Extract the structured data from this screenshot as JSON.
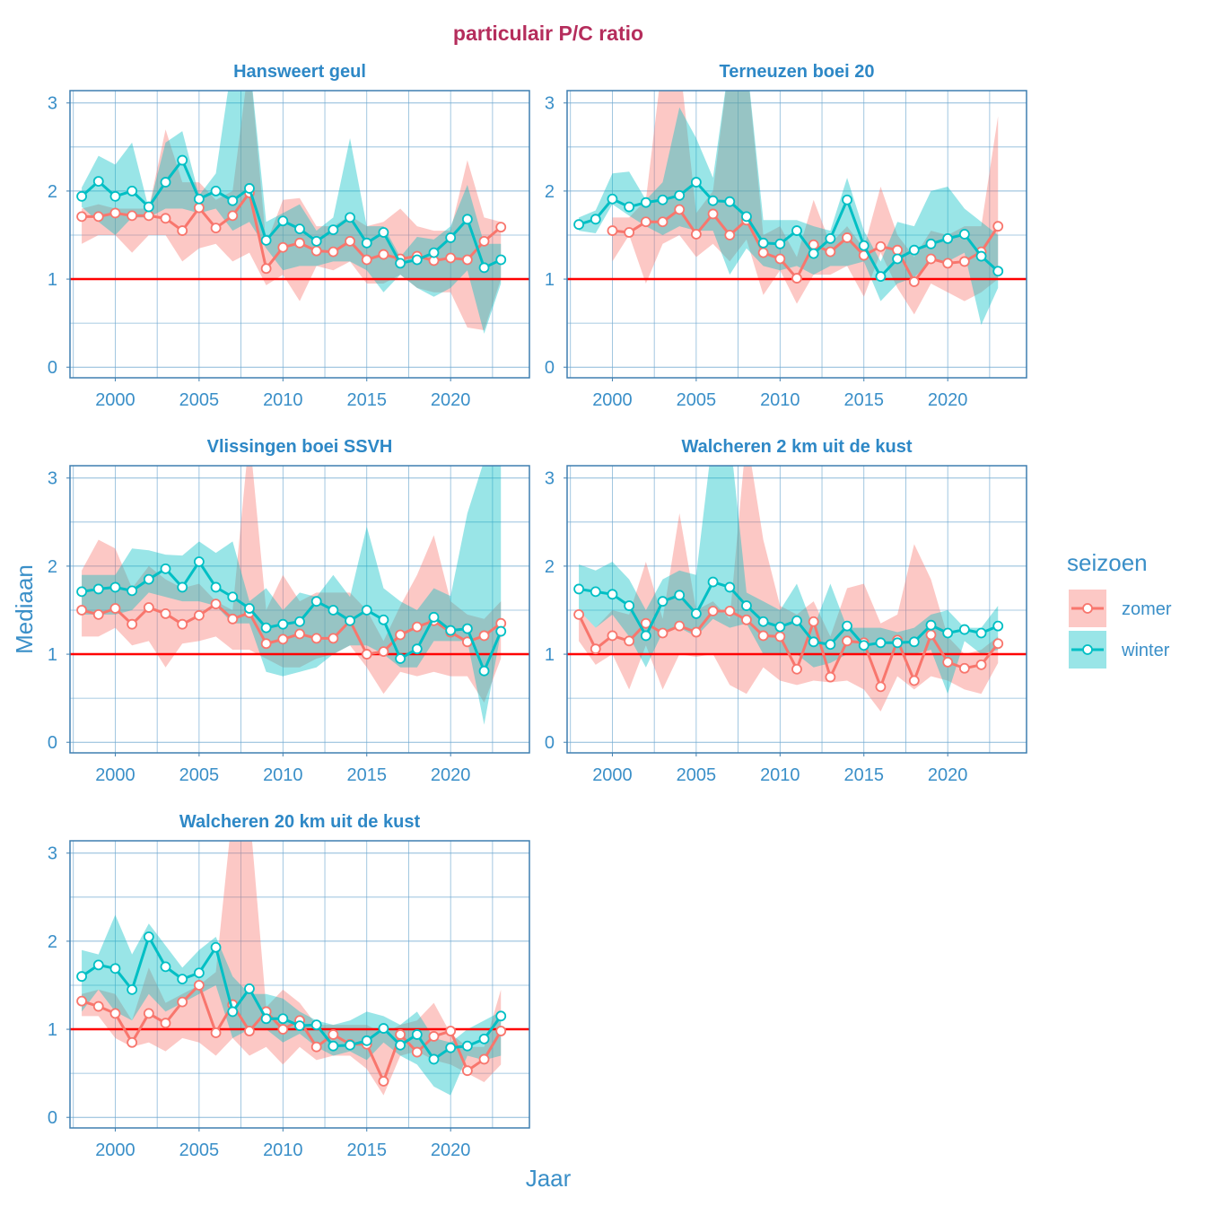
{
  "chart_data": {
    "type": "line",
    "title": "particulair P/C ratio",
    "xlabel": "Jaar",
    "ylabel": "Mediaan",
    "xlim": [
      1997.3,
      2024.7
    ],
    "ylim": [
      -0.12,
      3.14
    ],
    "x_ticks": [
      2000,
      2005,
      2010,
      2015,
      2020
    ],
    "y_ticks": [
      0,
      1,
      2,
      3
    ],
    "grid": true,
    "reference_line": {
      "y": 1,
      "color": "#ff0000"
    },
    "legend": {
      "title": "seizoen",
      "position": "right",
      "entries": [
        {
          "name": "zomer",
          "color": "#F8766D"
        },
        {
          "name": "winter",
          "color": "#00BFC4"
        }
      ]
    },
    "ribbon_opacity": 0.4,
    "panels": [
      {
        "title": "Hansweert geul",
        "series": [
          {
            "name": "zomer",
            "x0": 1998,
            "median": [
              1.71,
              1.71,
              1.75,
              1.72,
              1.72,
              1.69,
              1.55,
              1.81,
              1.58,
              1.72,
              1.98,
              1.12,
              1.36,
              1.41,
              1.32,
              1.31,
              1.43,
              1.22,
              1.28,
              1.23,
              1.26,
              1.21,
              1.24,
              1.22,
              1.43,
              1.59
            ],
            "lower": [
              1.4,
              1.5,
              1.5,
              1.3,
              1.5,
              1.5,
              1.2,
              1.35,
              1.4,
              1.2,
              1.3,
              0.93,
              1.05,
              0.75,
              1.15,
              1.1,
              1.2,
              0.95,
              0.95,
              1.05,
              0.9,
              0.85,
              0.85,
              0.45,
              0.42,
              1.0
            ],
            "upper": [
              1.8,
              1.85,
              1.8,
              1.8,
              1.8,
              2.7,
              2.1,
              2.1,
              1.9,
              2.0,
              3.5,
              1.4,
              1.9,
              1.92,
              1.6,
              1.6,
              1.72,
              1.6,
              1.65,
              1.8,
              1.6,
              1.55,
              1.55,
              2.35,
              1.7,
              1.65
            ]
          },
          {
            "name": "winter",
            "x0": 1998,
            "median": [
              1.94,
              2.11,
              1.94,
              2.0,
              1.82,
              2.1,
              2.35,
              1.91,
              2.0,
              1.89,
              2.03,
              1.44,
              1.66,
              1.57,
              1.43,
              1.56,
              1.7,
              1.41,
              1.53,
              1.18,
              1.22,
              1.3,
              1.47,
              1.68,
              1.13,
              1.22
            ],
            "lower": [
              1.82,
              1.65,
              1.5,
              1.7,
              1.7,
              1.8,
              1.8,
              1.75,
              1.8,
              1.55,
              1.65,
              1.35,
              1.1,
              1.15,
              1.15,
              1.2,
              1.2,
              1.1,
              0.85,
              1.05,
              0.9,
              0.8,
              0.9,
              1.1,
              0.38,
              0.95
            ],
            "upper": [
              2.04,
              2.4,
              2.3,
              2.55,
              1.8,
              2.55,
              2.68,
              1.95,
              2.2,
              3.5,
              3.5,
              1.65,
              1.75,
              1.85,
              1.55,
              1.7,
              2.6,
              1.6,
              1.6,
              1.25,
              1.48,
              1.45,
              1.6,
              2.07,
              1.4,
              1.4
            ]
          }
        ]
      },
      {
        "title": "Terneuzen boei 20",
        "series": [
          {
            "name": "zomer",
            "x0": 2000,
            "median": [
              1.55,
              1.53,
              1.65,
              1.65,
              1.79,
              1.51,
              1.74,
              1.5,
              1.67,
              1.3,
              1.23,
              1.01,
              1.39,
              1.31,
              1.47,
              1.27,
              1.37,
              1.33,
              0.97,
              1.23,
              1.18,
              1.2,
              1.31,
              1.6
            ],
            "lower": [
              1.2,
              1.5,
              0.95,
              1.4,
              1.5,
              1.25,
              1.4,
              1.2,
              1.45,
              0.82,
              1.1,
              0.72,
              1.05,
              1.05,
              1.15,
              0.8,
              1.3,
              0.9,
              0.6,
              0.95,
              0.85,
              0.75,
              0.85,
              1.0
            ],
            "upper": [
              1.7,
              1.7,
              1.9,
              3.5,
              3.5,
              1.75,
              2.0,
              3.5,
              3.5,
              1.5,
              1.6,
              1.25,
              1.9,
              1.4,
              1.6,
              1.35,
              2.05,
              1.5,
              1.25,
              1.55,
              1.5,
              1.6,
              1.6,
              2.85
            ]
          },
          {
            "name": "winter",
            "x0": 1998,
            "median": [
              1.62,
              1.68,
              1.91,
              1.82,
              1.87,
              1.9,
              1.95,
              2.1,
              1.89,
              1.88,
              1.71,
              1.41,
              1.4,
              1.55,
              1.29,
              1.46,
              1.9,
              1.38,
              1.03,
              1.23,
              1.33,
              1.4,
              1.46,
              1.51,
              1.26,
              1.09
            ],
            "lower": [
              1.55,
              1.52,
              1.85,
              1.72,
              1.6,
              1.5,
              1.6,
              1.55,
              1.55,
              1.05,
              1.35,
              1.15,
              1.1,
              1.15,
              1.05,
              1.15,
              1.15,
              1.2,
              0.75,
              0.95,
              1.02,
              1.2,
              1.2,
              1.3,
              0.48,
              0.9
            ],
            "upper": [
              1.7,
              1.78,
              2.2,
              2.22,
              1.9,
              2.1,
              2.95,
              2.6,
              2.15,
              3.5,
              3.5,
              1.67,
              1.67,
              1.67,
              1.6,
              1.55,
              2.15,
              1.55,
              1.2,
              1.65,
              1.6,
              2.0,
              2.05,
              1.8,
              1.65,
              1.5
            ]
          }
        ]
      },
      {
        "title": "Vlissingen boei SSVH",
        "series": [
          {
            "name": "zomer",
            "x0": 1998,
            "median": [
              1.5,
              1.45,
              1.52,
              1.34,
              1.53,
              1.46,
              1.34,
              1.44,
              1.57,
              1.4,
              1.47,
              1.12,
              1.17,
              1.23,
              1.18,
              1.18,
              1.38,
              1.0,
              1.03,
              1.22,
              1.31,
              1.38,
              1.25,
              1.14,
              1.21,
              1.35
            ],
            "lower": [
              1.2,
              1.2,
              1.3,
              1.1,
              1.15,
              0.85,
              1.12,
              1.15,
              1.2,
              1.05,
              1.05,
              0.95,
              0.85,
              0.85,
              0.95,
              1.0,
              1.1,
              0.85,
              0.55,
              0.8,
              0.75,
              0.8,
              0.75,
              0.75,
              0.45,
              0.95
            ],
            "upper": [
              1.95,
              2.3,
              2.2,
              1.75,
              2.0,
              1.85,
              1.75,
              1.8,
              1.6,
              1.5,
              3.5,
              1.5,
              1.9,
              1.6,
              1.7,
              1.7,
              1.7,
              1.5,
              1.15,
              1.55,
              1.9,
              2.35,
              1.6,
              1.45,
              1.4,
              1.6
            ]
          },
          {
            "name": "winter",
            "x0": 1998,
            "median": [
              1.71,
              1.74,
              1.76,
              1.72,
              1.85,
              1.97,
              1.76,
              2.05,
              1.76,
              1.65,
              1.52,
              1.3,
              1.34,
              1.37,
              1.6,
              1.5,
              1.38,
              1.5,
              1.39,
              0.95,
              1.06,
              1.42,
              1.27,
              1.29,
              0.81,
              1.26
            ],
            "lower": [
              1.45,
              1.45,
              1.45,
              1.5,
              1.7,
              1.65,
              1.6,
              1.6,
              1.55,
              1.35,
              1.35,
              0.8,
              0.75,
              0.8,
              0.85,
              1.0,
              1.1,
              1.1,
              1.0,
              0.85,
              0.85,
              1.15,
              1.15,
              1.15,
              0.2,
              1.25
            ],
            "upper": [
              1.9,
              1.9,
              1.9,
              2.2,
              2.18,
              2.13,
              2.12,
              2.28,
              2.15,
              2.28,
              1.6,
              1.75,
              1.5,
              1.7,
              1.65,
              1.9,
              1.65,
              2.45,
              1.75,
              1.6,
              1.5,
              1.75,
              1.66,
              2.6,
              3.2,
              3.5
            ]
          }
        ]
      },
      {
        "title": "Walcheren 2 km uit de kust",
        "series": [
          {
            "name": "zomer",
            "x0": 1998,
            "median": [
              1.45,
              1.06,
              1.21,
              1.15,
              1.35,
              1.24,
              1.32,
              1.25,
              1.49,
              1.49,
              1.39,
              1.21,
              1.2,
              0.83,
              1.37,
              0.74,
              1.15,
              1.13,
              0.63,
              1.16,
              0.7,
              1.22,
              0.91,
              0.84,
              0.88,
              1.12
            ],
            "lower": [
              1.15,
              0.88,
              1.0,
              0.6,
              1.1,
              0.6,
              1.0,
              0.97,
              1.0,
              0.65,
              0.55,
              0.85,
              0.7,
              0.65,
              0.7,
              0.68,
              0.7,
              0.6,
              0.35,
              0.75,
              0.6,
              0.75,
              0.7,
              0.6,
              0.55,
              0.9
            ],
            "upper": [
              1.5,
              1.3,
              1.5,
              1.45,
              2.05,
              1.4,
              2.6,
              1.5,
              1.6,
              1.4,
              3.5,
              2.3,
              1.55,
              1.45,
              1.6,
              1.2,
              1.75,
              1.8,
              1.35,
              1.45,
              2.25,
              1.85,
              1.2,
              1.0,
              1.05,
              1.2
            ]
          },
          {
            "name": "winter",
            "x0": 1998,
            "median": [
              1.74,
              1.71,
              1.68,
              1.55,
              1.21,
              1.6,
              1.67,
              1.46,
              1.82,
              1.76,
              1.55,
              1.37,
              1.31,
              1.38,
              1.14,
              1.11,
              1.32,
              1.1,
              1.13,
              1.13,
              1.14,
              1.33,
              1.24,
              1.28,
              1.24,
              1.32
            ],
            "lower": [
              1.5,
              1.3,
              1.45,
              1.2,
              0.85,
              1.25,
              1.3,
              1.2,
              1.4,
              1.3,
              1.35,
              1.0,
              1.0,
              1.0,
              0.85,
              0.9,
              1.0,
              1.0,
              1.0,
              1.0,
              1.0,
              1.05,
              0.55,
              1.15,
              1.0,
              1.05
            ],
            "upper": [
              2.02,
              1.95,
              2.05,
              1.85,
              1.5,
              1.85,
              1.95,
              1.9,
              3.5,
              3.5,
              1.7,
              1.6,
              1.5,
              1.8,
              1.3,
              1.8,
              1.3,
              1.3,
              1.3,
              1.25,
              1.3,
              1.45,
              1.5,
              1.3,
              1.3,
              1.55
            ]
          }
        ]
      },
      {
        "title": "Walcheren 20 km uit de kust",
        "series": [
          {
            "name": "zomer",
            "x0": 1998,
            "median": [
              1.32,
              1.26,
              1.18,
              0.85,
              1.18,
              1.07,
              1.31,
              1.5,
              0.96,
              1.28,
              0.98,
              1.2,
              1.0,
              1.1,
              0.8,
              0.94,
              0.83,
              0.83,
              0.41,
              0.94,
              0.74,
              0.92,
              0.98,
              0.53,
              0.66,
              0.98
            ],
            "lower": [
              1.15,
              1.15,
              0.9,
              0.8,
              0.85,
              0.75,
              0.9,
              0.85,
              0.7,
              0.9,
              0.7,
              0.8,
              0.6,
              0.8,
              0.65,
              0.7,
              0.7,
              0.55,
              0.25,
              0.7,
              0.75,
              0.65,
              0.6,
              0.5,
              0.4,
              0.6
            ],
            "upper": [
              1.4,
              1.45,
              1.4,
              1.1,
              1.7,
              1.3,
              1.4,
              1.5,
              1.65,
              3.5,
              3.5,
              1.25,
              1.45,
              1.3,
              1.05,
              1.05,
              1.05,
              1.05,
              0.95,
              1.05,
              1.1,
              1.3,
              0.95,
              0.8,
              0.8,
              1.45
            ]
          },
          {
            "name": "winter",
            "x0": 1998,
            "median": [
              1.6,
              1.73,
              1.69,
              1.45,
              2.05,
              1.71,
              1.57,
              1.64,
              1.93,
              1.2,
              1.46,
              1.12,
              1.12,
              1.04,
              1.05,
              0.81,
              0.82,
              0.87,
              1.01,
              0.82,
              0.94,
              0.66,
              0.79,
              0.81,
              0.89,
              1.15
            ],
            "lower": [
              1.2,
              1.45,
              1.2,
              1.1,
              1.4,
              1.2,
              1.3,
              1.4,
              1.5,
              0.9,
              1.0,
              1.0,
              0.85,
              0.95,
              0.8,
              0.7,
              0.75,
              0.65,
              0.85,
              0.7,
              0.6,
              0.35,
              0.25,
              0.7,
              0.65,
              0.7
            ],
            "upper": [
              1.9,
              1.85,
              2.3,
              1.85,
              2.2,
              1.95,
              1.7,
              1.9,
              2.05,
              1.6,
              1.4,
              1.4,
              1.35,
              1.2,
              1.1,
              1.05,
              1.1,
              1.2,
              1.15,
              1.05,
              1.2,
              0.9,
              0.85,
              1.0,
              1.1,
              1.2
            ]
          }
        ]
      }
    ]
  }
}
